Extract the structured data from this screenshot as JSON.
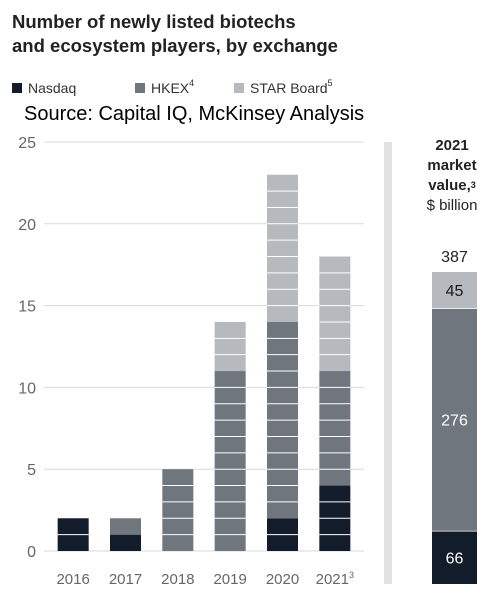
{
  "title_line1": "Number of newly listed biotechs",
  "title_line2": "and ecosystem players, by exchange",
  "source": "Source: Capital IQ, McKinsey Analysis",
  "legend": [
    {
      "label": "Nasdaq",
      "sup": "",
      "color": "#121c2a"
    },
    {
      "label": "HKEX",
      "sup": "4",
      "color": "#6f767d"
    },
    {
      "label": "STAR Board",
      "sup": "5",
      "color": "#b6b9bd"
    }
  ],
  "colors": {
    "nasdaq": "#121c2a",
    "hkex": "#6f767d",
    "star": "#b6b9bd",
    "axis_text": "#666666",
    "grid": "#d9d9d9"
  },
  "chart_data": [
    {
      "type": "bar",
      "stacked": true,
      "categories": [
        "2016",
        "2017",
        "2018",
        "2019",
        "2020",
        "2021"
      ],
      "category_sup": [
        "",
        "",
        "",
        "",
        "",
        "3"
      ],
      "series": [
        {
          "name": "Nasdaq",
          "values": [
            2,
            1,
            0,
            0,
            2,
            4
          ]
        },
        {
          "name": "HKEX",
          "values": [
            0,
            1,
            5,
            11,
            12,
            7
          ]
        },
        {
          "name": "STAR Board",
          "values": [
            0,
            0,
            0,
            3,
            9,
            7
          ]
        }
      ],
      "y_ticks": [
        0,
        5,
        10,
        15,
        20,
        25
      ],
      "ylim": [
        0,
        25
      ]
    },
    {
      "type": "bar",
      "stacked": true,
      "title_line1": "2021",
      "title_line2": "market",
      "title_line3": "value,",
      "title_sup": "3",
      "unit": "$ billion",
      "total": 387,
      "series": [
        {
          "name": "Nasdaq",
          "values": [
            66
          ]
        },
        {
          "name": "HKEX",
          "values": [
            276
          ]
        },
        {
          "name": "STAR Board",
          "values": [
            45
          ]
        }
      ]
    }
  ]
}
